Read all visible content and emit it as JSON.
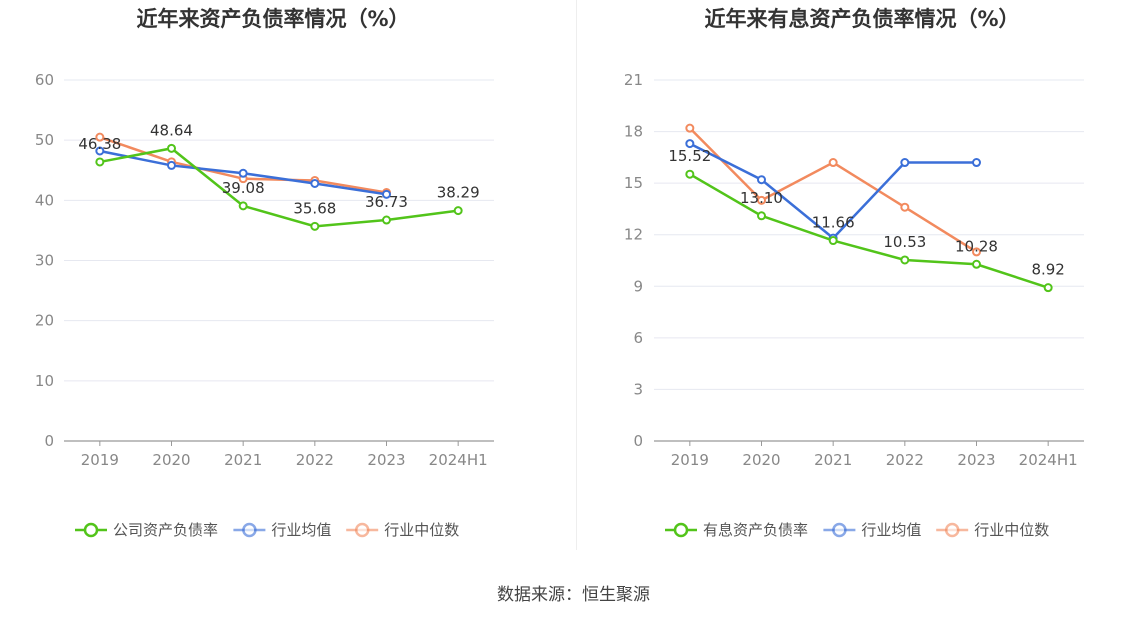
{
  "colors": {
    "company": "#52c41a",
    "mean": "#3b6fd8",
    "median": "#f28a5e",
    "grid": "#e6e8f0",
    "axis": "#999999",
    "tick_text": "#888888",
    "title": "#333333"
  },
  "source": "数据来源：恒生聚源",
  "chart_data": [
    {
      "type": "line",
      "title": "近年来资产负债率情况（%）",
      "categories": [
        "2019",
        "2020",
        "2021",
        "2022",
        "2023",
        "2024H1"
      ],
      "ylim": [
        0,
        60
      ],
      "yticks": [
        "0",
        "10",
        "20",
        "30",
        "40",
        "50",
        "60"
      ],
      "grid": true,
      "legend_position": "bottom",
      "series": [
        {
          "name": "公司资产负债率",
          "color_key": "company",
          "values": [
            46.38,
            48.64,
            39.08,
            35.68,
            36.73,
            38.29
          ],
          "labels": [
            "46.38",
            "48.64",
            "39.08",
            "35.68",
            "36.73",
            "38.29"
          ]
        },
        {
          "name": "行业均值",
          "color_key": "mean",
          "values": [
            48.2,
            45.8,
            44.5,
            42.8,
            41.0,
            null
          ]
        },
        {
          "name": "行业中位数",
          "color_key": "median",
          "values": [
            50.5,
            46.4,
            43.6,
            43.3,
            41.3,
            null
          ]
        }
      ]
    },
    {
      "type": "line",
      "title": "近年来有息资产负债率情况（%）",
      "categories": [
        "2019",
        "2020",
        "2021",
        "2022",
        "2023",
        "2024H1"
      ],
      "ylim": [
        0,
        21
      ],
      "yticks": [
        "0",
        "3",
        "6",
        "9",
        "12",
        "15",
        "18",
        "21"
      ],
      "grid": true,
      "legend_position": "bottom",
      "series": [
        {
          "name": "有息资产负债率",
          "color_key": "company",
          "values": [
            15.52,
            13.1,
            11.66,
            10.53,
            10.28,
            8.92
          ],
          "labels": [
            "15.52",
            "13.10",
            "11.66",
            "10.53",
            "10.28",
            "8.92"
          ]
        },
        {
          "name": "行业均值",
          "color_key": "mean",
          "values": [
            17.3,
            15.2,
            11.8,
            16.2,
            16.2,
            null
          ]
        },
        {
          "name": "行业中位数",
          "color_key": "median",
          "values": [
            18.2,
            14.0,
            16.2,
            13.6,
            11.0,
            null
          ]
        }
      ]
    }
  ]
}
